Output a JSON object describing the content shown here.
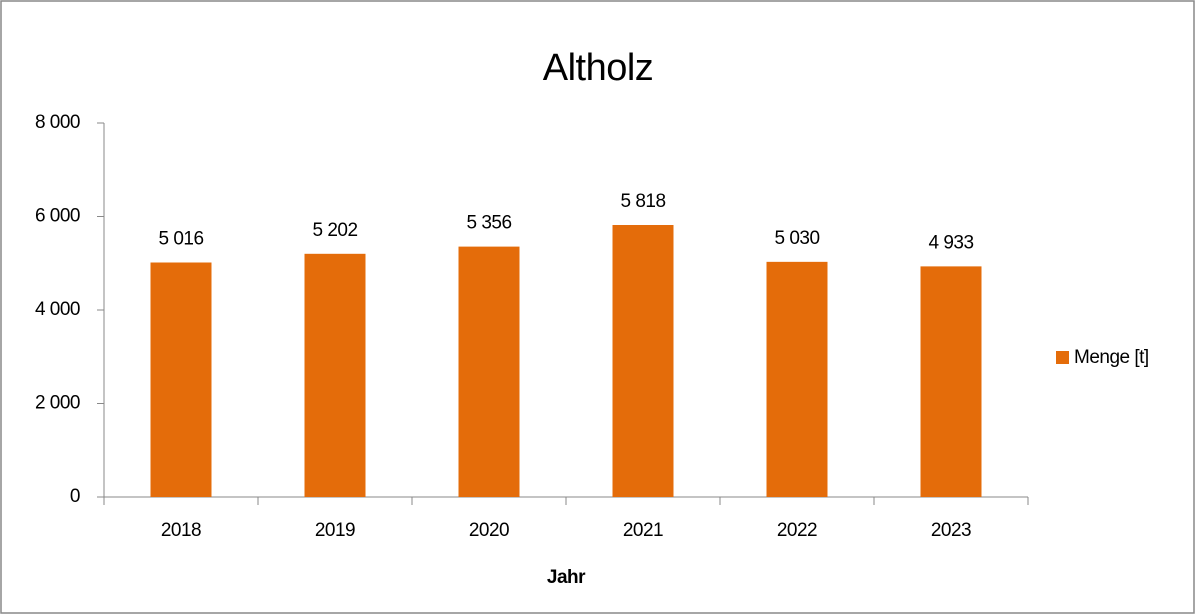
{
  "chart_data": {
    "type": "bar",
    "title": "Altholz",
    "x_label": "Jahr",
    "categories": [
      "2018",
      "2019",
      "2020",
      "2021",
      "2022",
      "2023"
    ],
    "series": [
      {
        "name": "Menge [t]",
        "color": "#e46c0a",
        "values": [
          5016,
          5202,
          5356,
          5818,
          5030,
          4933
        ],
        "value_labels": [
          "5 016",
          "5 202",
          "5 356",
          "5 818",
          "5 030",
          "4 933"
        ]
      }
    ],
    "ylim": [
      0,
      8000
    ],
    "yticks": [
      0,
      {
        "value": 2000,
        "label": "2 000"
      },
      {
        "value": 4000,
        "label": "4 000"
      },
      {
        "value": 6000,
        "label": "6 000"
      },
      {
        "value": 8000,
        "label": "8 000"
      }
    ],
    "legend": "right"
  }
}
